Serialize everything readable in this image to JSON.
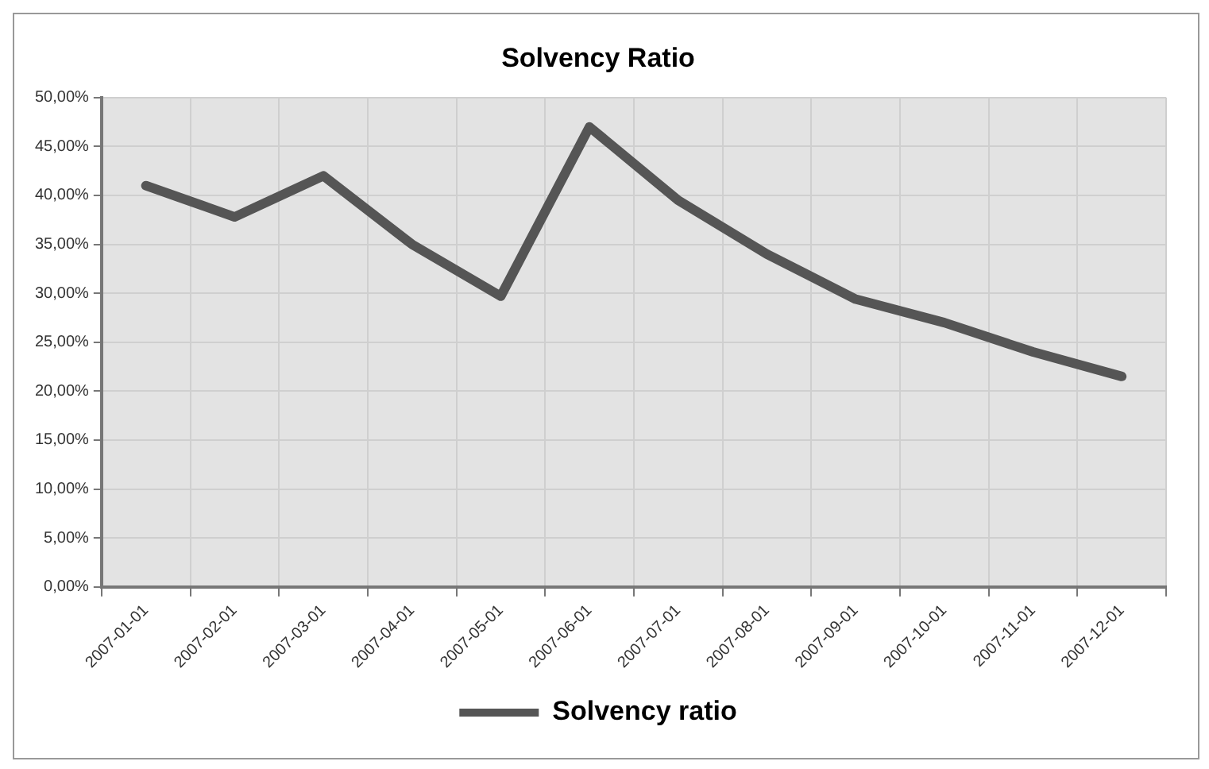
{
  "chart_data": {
    "type": "line",
    "title": "Solvency Ratio",
    "categories": [
      "2007-01-01",
      "2007-02-01",
      "2007-03-01",
      "2007-04-01",
      "2007-05-01",
      "2007-06-01",
      "2007-07-01",
      "2007-08-01",
      "2007-09-01",
      "2007-10-01",
      "2007-11-01",
      "2007-12-01"
    ],
    "series": [
      {
        "name": "Solvency ratio",
        "color": "#555555",
        "values": [
          41,
          37.8,
          42,
          35,
          29.7,
          47,
          39.5,
          34,
          29.4,
          27,
          24,
          21.5
        ]
      }
    ],
    "ylim": [
      0,
      50
    ],
    "yticks": [
      {
        "value": 0,
        "label": "0,00%"
      },
      {
        "value": 5,
        "label": "5,00%"
      },
      {
        "value": 10,
        "label": "10,00%"
      },
      {
        "value": 15,
        "label": "15,00%"
      },
      {
        "value": 20,
        "label": "20,00%"
      },
      {
        "value": 25,
        "label": "25,00%"
      },
      {
        "value": 30,
        "label": "30,00%"
      },
      {
        "value": 35,
        "label": "35,00%"
      },
      {
        "value": 40,
        "label": "40,00%"
      },
      {
        "value": 45,
        "label": "45,00%"
      },
      {
        "value": 50,
        "label": "50,00%"
      }
    ],
    "grid": true,
    "legend": "bottom",
    "marker": "none",
    "line_style": "solid"
  }
}
